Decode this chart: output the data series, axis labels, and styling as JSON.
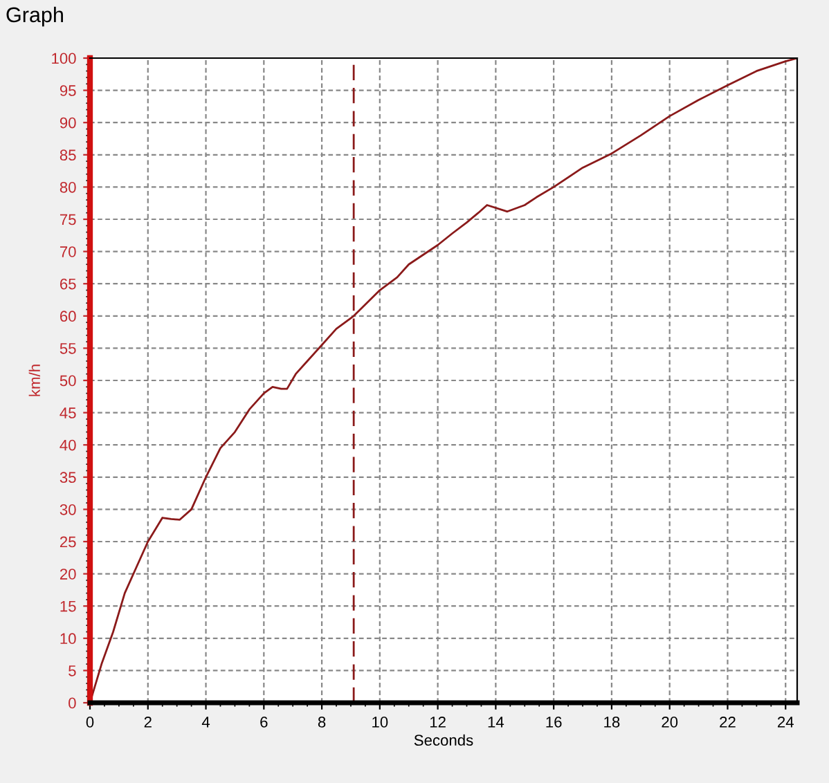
{
  "chart_data": {
    "type": "line",
    "title": "Graph",
    "xlabel": "Seconds",
    "ylabel": "km/h",
    "series": [
      {
        "color": "#8b1a1a",
        "x": [
          0,
          0.4,
          0.8,
          1.2,
          1.6,
          2,
          2.5,
          2.8,
          3.1,
          3.5,
          4,
          4.5,
          5,
          5.5,
          6,
          6.3,
          6.6,
          6.8,
          7.1,
          7.5,
          8,
          8.5,
          9.1,
          10,
          10.6,
          11,
          11.5,
          12,
          12.5,
          13,
          13.4,
          13.7,
          14.4,
          15,
          15.4,
          16,
          17,
          18,
          19,
          20,
          21,
          22,
          23,
          24,
          24.4
        ],
        "values": [
          0,
          6,
          11,
          17,
          21,
          25,
          28.7,
          28.5,
          28.4,
          30,
          35,
          39.5,
          42,
          45.5,
          48,
          49,
          48.7,
          48.7,
          51,
          53,
          55.5,
          58,
          60,
          64,
          66,
          68,
          69.5,
          71,
          72.8,
          74.5,
          76,
          77.2,
          76.2,
          77.2,
          78.4,
          80,
          83,
          85.2,
          88,
          91,
          93.5,
          95.8,
          98,
          99.5,
          100
        ]
      }
    ],
    "xlim": [
      0,
      24.4
    ],
    "xticks": [
      0,
      2,
      4,
      6,
      8,
      10,
      12,
      14,
      16,
      18,
      20,
      22,
      24
    ],
    "ylim": [
      0,
      100
    ],
    "yticks": [
      0,
      5,
      10,
      15,
      20,
      25,
      30,
      35,
      40,
      45,
      50,
      55,
      60,
      65,
      70,
      75,
      80,
      85,
      90,
      95,
      100
    ],
    "ref_lines": [
      {
        "axis": "x",
        "value": 9.1,
        "color": "#8b1a1a",
        "line_style": "dashed"
      }
    ],
    "grid": true,
    "legend": false,
    "marker": "none",
    "line_style": "solid"
  }
}
